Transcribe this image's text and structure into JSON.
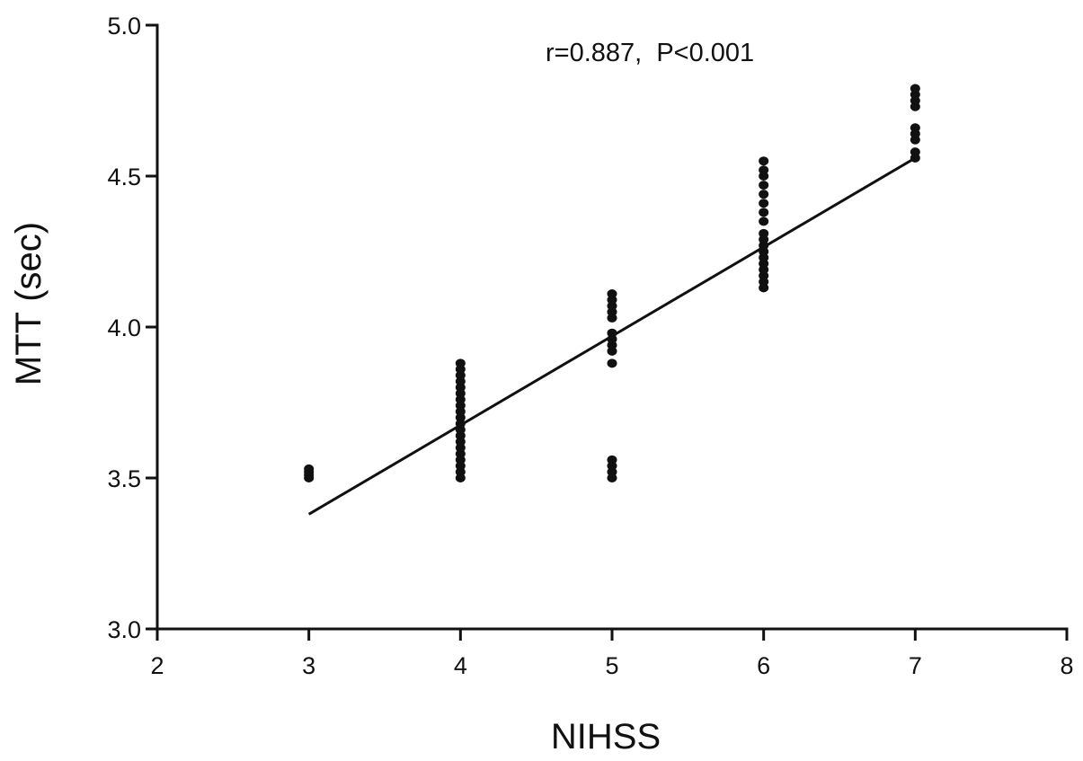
{
  "chart_data": {
    "type": "scatter",
    "title": "",
    "xlabel": "NIHSS",
    "ylabel": "MTT (sec)",
    "xlim": [
      2,
      8
    ],
    "ylim": [
      3.0,
      5.0
    ],
    "x_ticks": [
      2,
      3,
      4,
      5,
      6,
      7,
      8
    ],
    "y_ticks": [
      3.0,
      3.5,
      4.0,
      4.5,
      5.0
    ],
    "x_tick_labels": [
      "2",
      "3",
      "4",
      "5",
      "6",
      "7",
      "8"
    ],
    "y_tick_labels": [
      "3.0",
      "3.5",
      "4.0",
      "4.5",
      "5.0"
    ],
    "annotation": "r=0.887,  P<0.001",
    "grid": false,
    "legend": "none",
    "marker_color": "#111111",
    "series": [
      {
        "points": [
          {
            "x": 3,
            "y": 3.5
          },
          {
            "x": 3,
            "y": 3.51
          },
          {
            "x": 3,
            "y": 3.52
          },
          {
            "x": 3,
            "y": 3.53
          },
          {
            "x": 4,
            "y": 3.5
          },
          {
            "x": 4,
            "y": 3.52
          },
          {
            "x": 4,
            "y": 3.54
          },
          {
            "x": 4,
            "y": 3.56
          },
          {
            "x": 4,
            "y": 3.58
          },
          {
            "x": 4,
            "y": 3.6
          },
          {
            "x": 4,
            "y": 3.62
          },
          {
            "x": 4,
            "y": 3.64
          },
          {
            "x": 4,
            "y": 3.66
          },
          {
            "x": 4,
            "y": 3.68
          },
          {
            "x": 4,
            "y": 3.7
          },
          {
            "x": 4,
            "y": 3.72
          },
          {
            "x": 4,
            "y": 3.74
          },
          {
            "x": 4,
            "y": 3.76
          },
          {
            "x": 4,
            "y": 3.78
          },
          {
            "x": 4,
            "y": 3.8
          },
          {
            "x": 4,
            "y": 3.82
          },
          {
            "x": 4,
            "y": 3.84
          },
          {
            "x": 4,
            "y": 3.86
          },
          {
            "x": 4,
            "y": 3.88
          },
          {
            "x": 5,
            "y": 3.5
          },
          {
            "x": 5,
            "y": 3.52
          },
          {
            "x": 5,
            "y": 3.54
          },
          {
            "x": 5,
            "y": 3.56
          },
          {
            "x": 5,
            "y": 3.88
          },
          {
            "x": 5,
            "y": 3.92
          },
          {
            "x": 5,
            "y": 3.94
          },
          {
            "x": 5,
            "y": 3.96
          },
          {
            "x": 5,
            "y": 3.98
          },
          {
            "x": 5,
            "y": 4.03
          },
          {
            "x": 5,
            "y": 4.05
          },
          {
            "x": 5,
            "y": 4.07
          },
          {
            "x": 5,
            "y": 4.09
          },
          {
            "x": 5,
            "y": 4.11
          },
          {
            "x": 6,
            "y": 4.13
          },
          {
            "x": 6,
            "y": 4.15
          },
          {
            "x": 6,
            "y": 4.17
          },
          {
            "x": 6,
            "y": 4.19
          },
          {
            "x": 6,
            "y": 4.21
          },
          {
            "x": 6,
            "y": 4.23
          },
          {
            "x": 6,
            "y": 4.25
          },
          {
            "x": 6,
            "y": 4.27
          },
          {
            "x": 6,
            "y": 4.29
          },
          {
            "x": 6,
            "y": 4.31
          },
          {
            "x": 6,
            "y": 4.35
          },
          {
            "x": 6,
            "y": 4.38
          },
          {
            "x": 6,
            "y": 4.41
          },
          {
            "x": 6,
            "y": 4.44
          },
          {
            "x": 6,
            "y": 4.47
          },
          {
            "x": 6,
            "y": 4.5
          },
          {
            "x": 6,
            "y": 4.52
          },
          {
            "x": 6,
            "y": 4.55
          },
          {
            "x": 7,
            "y": 4.56
          },
          {
            "x": 7,
            "y": 4.58
          },
          {
            "x": 7,
            "y": 4.62
          },
          {
            "x": 7,
            "y": 4.64
          },
          {
            "x": 7,
            "y": 4.66
          },
          {
            "x": 7,
            "y": 4.73
          },
          {
            "x": 7,
            "y": 4.75
          },
          {
            "x": 7,
            "y": 4.77
          },
          {
            "x": 7,
            "y": 4.79
          }
        ]
      }
    ],
    "fit_line": {
      "x": [
        3,
        7
      ],
      "y": [
        3.38,
        4.56
      ]
    }
  }
}
